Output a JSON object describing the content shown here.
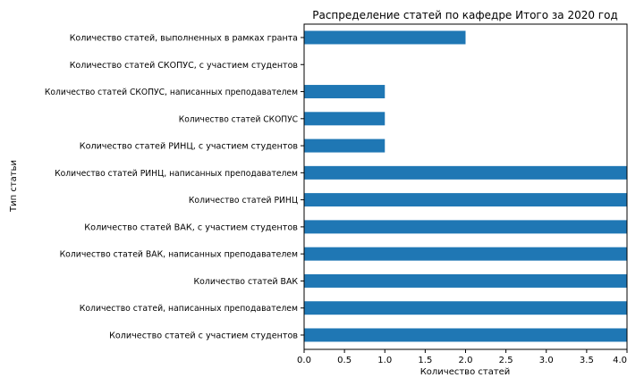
{
  "chart_data": {
    "type": "bar",
    "orientation": "horizontal",
    "title": "Распределение статей по кафедре Итого за 2020 год",
    "xlabel": "Количество статей",
    "ylabel": "Тип статьи",
    "xlim": [
      0,
      4
    ],
    "x_ticks": [
      "0.0",
      "0.5",
      "1.0",
      "1.5",
      "2.0",
      "2.5",
      "3.0",
      "3.5",
      "4.0"
    ],
    "grid": false,
    "legend": "none",
    "bar_color": "#1f77b4",
    "categories": [
      "Количество статей, выполненных в рамках гранта",
      "Количество статей СКОПУС, с участием студентов",
      "Количество статей СКОПУС, написанных преподавателем",
      "Количество статей СКОПУС",
      "Количество статей РИНЦ, с участием студентов",
      "Количество статей РИНЦ, написанных преподавателем",
      "Количество статей РИНЦ",
      "Количество статей ВАК, с участием студентов",
      "Количество статей ВАК, написанных преподавателем",
      "Количество статей ВАК",
      "Количество статей, написанных преподавателем",
      "Количество статей с участием студентов"
    ],
    "values": [
      2,
      0,
      1,
      1,
      1,
      4,
      4,
      4,
      4,
      4,
      4,
      4
    ]
  }
}
